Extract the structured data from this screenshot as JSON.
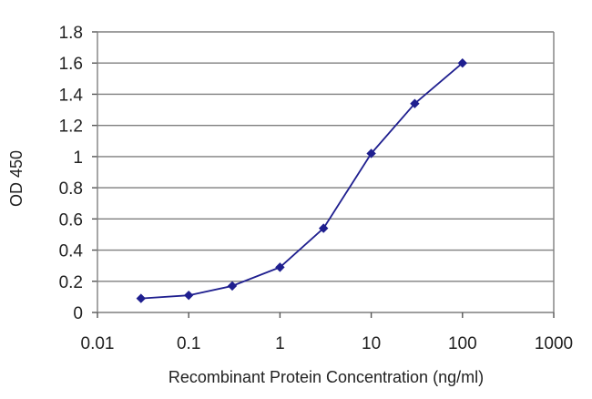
{
  "chart_data": {
    "type": "line",
    "title": "",
    "xlabel": "Recombinant Protein Concentration (ng/ml)",
    "ylabel": "OD 450",
    "xscale": "log",
    "xlim": [
      0.01,
      1000
    ],
    "ylim": [
      0,
      1.8
    ],
    "grid": "horizontal",
    "legend": "none",
    "x_tick_labels": [
      "0.01",
      "0.1",
      "1",
      "10",
      "100",
      "1000"
    ],
    "x_tick_values": [
      0.01,
      0.1,
      1,
      10,
      100,
      1000
    ],
    "y_tick_labels": [
      "0",
      "0.2",
      "0.4",
      "0.6",
      "0.8",
      "1",
      "1.2",
      "1.4",
      "1.6",
      "1.8"
    ],
    "y_tick_values": [
      0,
      0.2,
      0.4,
      0.6,
      0.8,
      1.0,
      1.2,
      1.4,
      1.6,
      1.8
    ],
    "series": [
      {
        "color": "#1f1f8f",
        "x": [
          0.03,
          0.1,
          0.3,
          1,
          3,
          10,
          30,
          100
        ],
        "y": [
          0.09,
          0.11,
          0.17,
          0.29,
          0.54,
          1.02,
          1.34,
          1.6
        ]
      }
    ]
  }
}
